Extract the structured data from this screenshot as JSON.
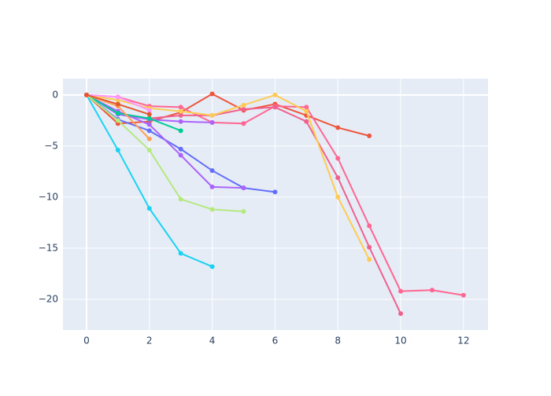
{
  "chart_data": {
    "type": "line",
    "xlim": [
      -0.75,
      12.78
    ],
    "ylim": [
      -23,
      1.6
    ],
    "xticks": [
      0,
      2,
      4,
      6,
      8,
      10,
      12
    ],
    "yticks": [
      0,
      {
        "value": -5,
        "label": "−5"
      },
      {
        "value": -10,
        "label": "−10"
      },
      {
        "value": -15,
        "label": "−15"
      },
      {
        "value": -20,
        "label": "−20"
      }
    ],
    "grid": true,
    "series": [
      {
        "color": "#ef553b",
        "x": [
          0,
          1,
          2,
          3,
          4,
          5,
          6,
          7,
          8,
          9
        ],
        "values": [
          0,
          -2.8,
          -2.6,
          -1.7,
          0.1,
          -1.5,
          -0.9,
          -2.0,
          -3.2,
          -4.0
        ]
      },
      {
        "color": "#ff6692",
        "x": [
          0,
          1,
          2,
          3,
          4,
          5,
          6,
          7,
          8,
          9,
          10,
          11,
          12
        ],
        "values": [
          0,
          -0.2,
          -1.1,
          -1.2,
          -2.7,
          -2.8,
          -1.1,
          -1.2,
          -6.2,
          -12.8,
          -19.2,
          -19.1,
          -19.6
        ]
      },
      {
        "color": "#f0608c",
        "x": [
          0,
          1,
          2,
          3,
          4,
          5,
          6,
          7,
          8,
          9,
          10
        ],
        "values": [
          0,
          -1.8,
          -2.3,
          -2.0,
          -2.0,
          -1.4,
          -1.2,
          -2.6,
          -8.1,
          -14.9,
          -21.4
        ]
      },
      {
        "color": "#fecb52",
        "x": [
          0,
          1,
          2,
          3,
          4,
          5,
          6,
          7,
          8,
          9
        ],
        "values": [
          0,
          -0.5,
          -1.3,
          -1.6,
          -2.0,
          -1.0,
          0.0,
          -1.6,
          -10.0,
          -16.1
        ]
      },
      {
        "color": "#636efa",
        "x": [
          0,
          1,
          2,
          3,
          4,
          5,
          6
        ],
        "values": [
          0,
          -2.4,
          -3.5,
          -5.3,
          -7.4,
          -9.1,
          -9.5
        ]
      },
      {
        "color": "#ab63fa",
        "x": [
          0,
          1,
          2,
          3,
          4,
          5
        ],
        "values": [
          0,
          -1.6,
          -2.9,
          -5.9,
          -9.0,
          -9.1
        ]
      },
      {
        "color": "#ab63fa",
        "x": [
          0,
          1,
          2,
          3,
          4
        ],
        "values": [
          0,
          -1.9,
          -2.4,
          -2.6,
          -2.7
        ]
      },
      {
        "color": "#00cc96",
        "x": [
          0,
          1,
          2,
          3
        ],
        "values": [
          0,
          -1.8,
          -2.3,
          -3.5
        ]
      },
      {
        "color": "#19d3f3",
        "x": [
          0,
          1,
          2,
          3,
          4
        ],
        "values": [
          0,
          -5.4,
          -11.1,
          -15.5,
          -16.8
        ]
      },
      {
        "color": "#b6e880",
        "x": [
          0,
          1,
          2,
          3,
          4,
          5
        ],
        "values": [
          0,
          -2.5,
          -5.4,
          -10.2,
          -11.2,
          -11.4
        ]
      },
      {
        "color": "#ffa15a",
        "x": [
          0,
          1,
          2
        ],
        "values": [
          0,
          -1.1,
          -4.3
        ]
      },
      {
        "color": "#ff97ff",
        "x": [
          0,
          1,
          2
        ],
        "values": [
          0,
          -0.2,
          -1.5
        ]
      },
      {
        "color": "#e2582f",
        "x": [
          0,
          1,
          2
        ],
        "values": [
          0,
          -0.9,
          -1.9
        ]
      }
    ]
  }
}
